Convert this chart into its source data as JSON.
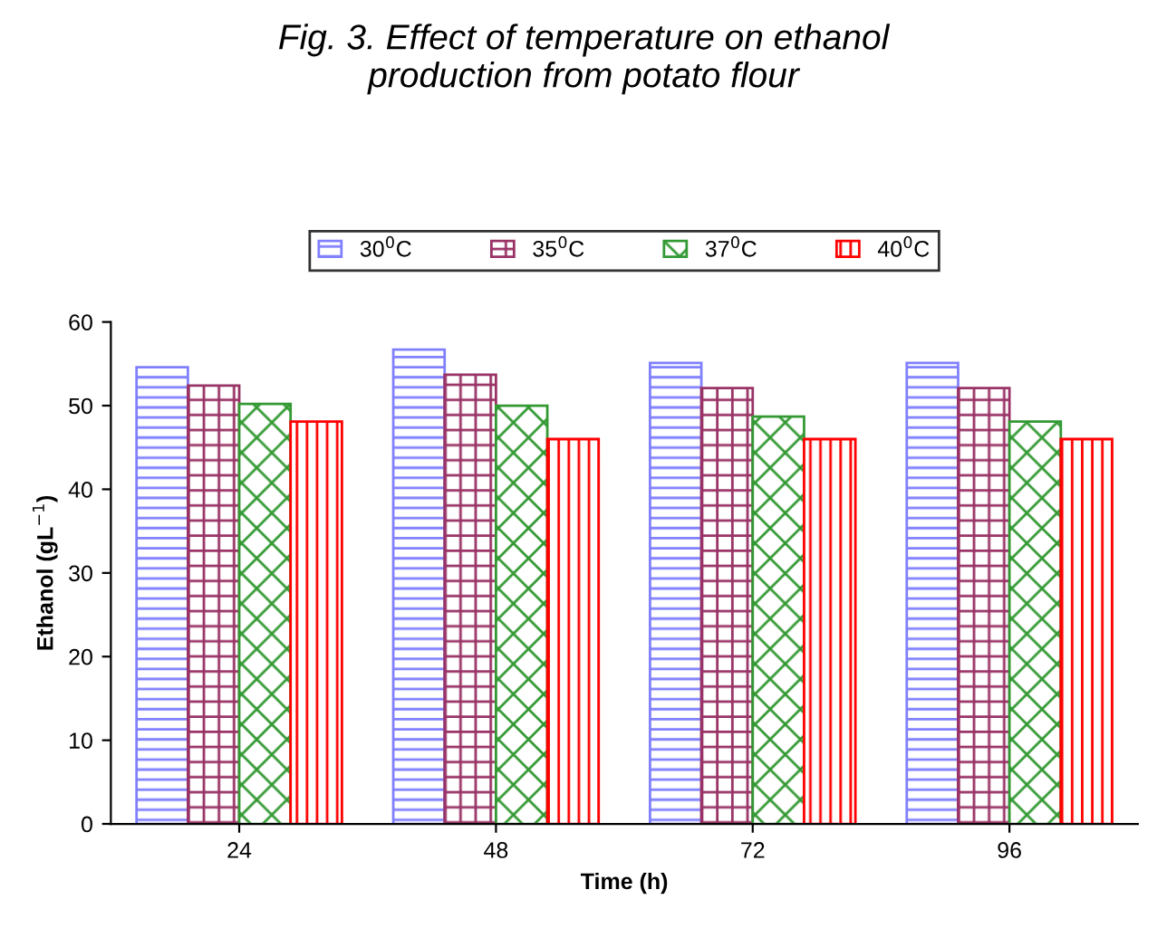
{
  "chart_data": {
    "type": "bar",
    "title": "Fig. 3. Effect of temperature on ethanol\nproduction from potato flour",
    "categories": [
      "24",
      "48",
      "72",
      "96"
    ],
    "series": [
      {
        "name": "30$^{0}$C",
        "color": "#8080ff",
        "values": [
          54.6,
          56.7,
          55.1,
          55.1
        ]
      },
      {
        "name": "35$^{0}$C",
        "color": "#993366",
        "values": [
          52.4,
          53.7,
          52.1,
          52.1
        ]
      },
      {
        "name": "37$^{0}$C",
        "color": "#339933",
        "values": [
          50.2,
          50.0,
          48.7,
          48.1
        ]
      },
      {
        "name": "40$^{0}$C",
        "color": "#ff0000",
        "values": [
          48.1,
          46.0,
          46.0,
          46.0
        ]
      }
    ],
    "xlabel": "Time (h)",
    "ylabel": "Ethanol (gL$^{−1}$)",
    "ylim": [
      0,
      60
    ],
    "yticks": [
      0,
      10,
      20,
      30,
      40,
      50,
      60
    ],
    "grid": false,
    "legend": "top"
  }
}
